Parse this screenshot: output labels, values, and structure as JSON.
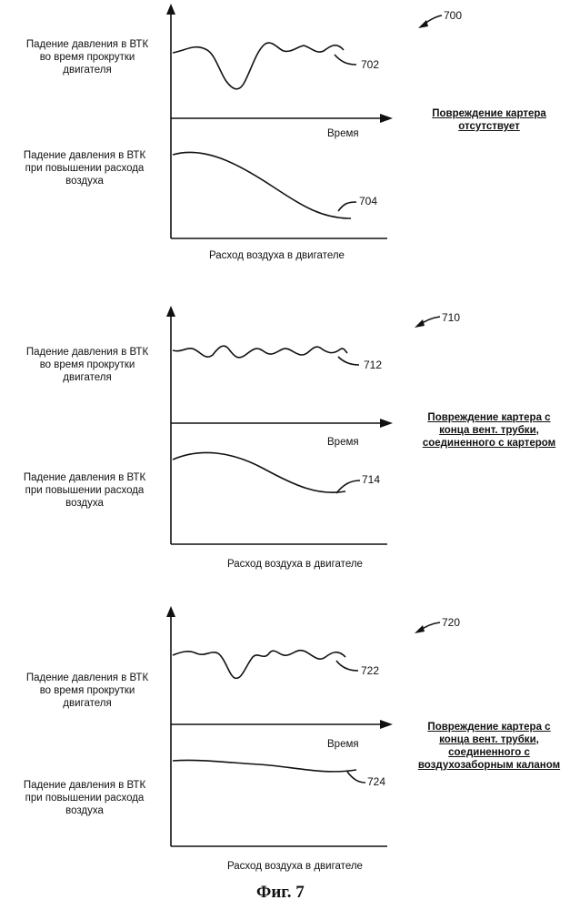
{
  "panels": [
    {
      "id": "700",
      "top_label": "Падение давления в ВТК\nво время прокрутки\nдвигателя",
      "top_axis": "Время",
      "top_ref": "702",
      "bottom_label": "Падение давления в ВТК\nпри повышении расхода\nвоздуха",
      "bottom_axis": "Расход воздуха в двигателе",
      "bottom_ref": "704",
      "caption": "Повреждение картера\nотсутствует"
    },
    {
      "id": "710",
      "top_label": "Падение давления в ВТК\nво время прокрутки\nдвигателя",
      "top_axis": "Время",
      "top_ref": "712",
      "bottom_label": "Падение давления в ВТК\nпри повышении расхода\nвоздуха",
      "bottom_axis": "Расход воздуха в двигателе",
      "bottom_ref": "714",
      "caption": "Повреждение картера с\nконца вент. трубки,\nсоединенного с картером"
    },
    {
      "id": "720",
      "top_label": "Падение давления в ВТК\nво время прокрутки\nдвигателя",
      "top_axis": "Время",
      "top_ref": "722",
      "bottom_label": "Падение давления в ВТК\nпри повышении расхода\nвоздуха",
      "bottom_axis": "Расход воздуха в двигателе",
      "bottom_ref": "724",
      "caption": "Повреждение картера с\nконца вент. трубки,\nсоединенного с\nвоздухозаборным каланом"
    }
  ],
  "figure_caption": "Фиг. 7"
}
